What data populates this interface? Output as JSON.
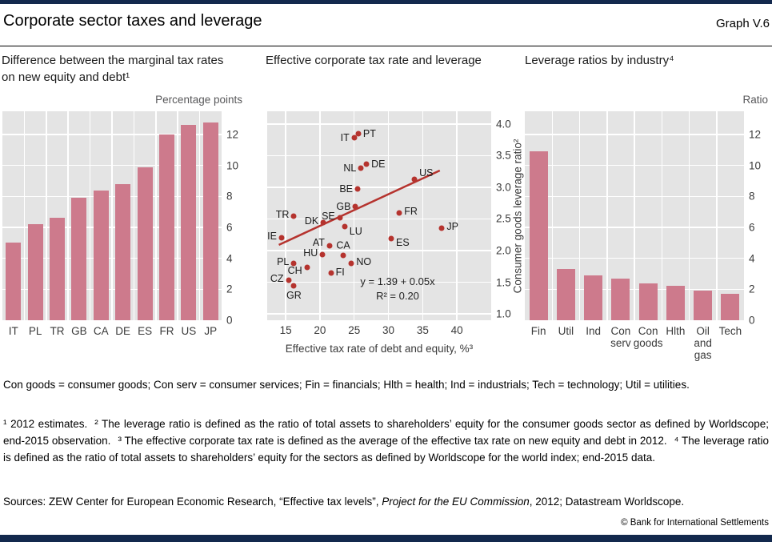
{
  "header": {
    "title": "Corporate sector taxes and leverage",
    "graph_label": "Graph V.6"
  },
  "colors": {
    "brand_bar": "#13294d",
    "plot_bg": "#e4e4e4",
    "gridline": "#ffffff",
    "bar": "#cd7a8c",
    "dot": "#b5332e",
    "trend": "#b5332e"
  },
  "chart_data": [
    {
      "type": "bar",
      "title": "Difference between the marginal tax rates on new equity and debt¹",
      "unit": "Percentage points",
      "categories": [
        "IT",
        "PL",
        "TR",
        "GB",
        "CA",
        "DE",
        "ES",
        "FR",
        "US",
        "JP"
      ],
      "values": [
        5.0,
        6.2,
        6.6,
        7.9,
        8.4,
        8.8,
        9.9,
        12.0,
        12.6,
        12.8
      ],
      "ylim": [
        0,
        13.5
      ],
      "yticks": [
        0,
        2,
        4,
        6,
        8,
        10,
        12
      ],
      "grid": true,
      "legend": "none",
      "bar_color": "#cd7a8c"
    },
    {
      "type": "scatter",
      "title": "Effective corporate tax rate and leverage",
      "xlabel": "Effective tax rate of debt and equity, %³",
      "ylabel": "Consumer goods leverage ratio²",
      "xlim": [
        12.3,
        45
      ],
      "ylim": [
        0.9,
        4.2
      ],
      "xticks": [
        15,
        20,
        25,
        30,
        35,
        40
      ],
      "yticks": [
        1.0,
        1.5,
        2.0,
        2.5,
        3.0,
        3.5,
        4.0
      ],
      "ytick_labels": [
        "1.0",
        "1.5",
        "2.0",
        "2.5",
        "3.0",
        "3.5",
        "4.0"
      ],
      "grid": true,
      "dot_color": "#b5332e",
      "line_color": "#b5332e",
      "trendline": {
        "equation": "y = 1.39 + 0.05x",
        "r2": "R² = 0.20",
        "slope": 0.05,
        "intercept": 1.39,
        "x_start": 14,
        "x_end": 37.5
      },
      "points": [
        {
          "label": "IT",
          "x": 25.0,
          "y": 3.78,
          "side": "left"
        },
        {
          "label": "PT",
          "x": 25.6,
          "y": 3.84,
          "side": "right"
        },
        {
          "label": "NL",
          "x": 26.0,
          "y": 3.3,
          "side": "left"
        },
        {
          "label": "DE",
          "x": 26.8,
          "y": 3.37,
          "side": "right"
        },
        {
          "label": "US",
          "x": 33.8,
          "y": 3.12,
          "side": "right",
          "dy": -8
        },
        {
          "label": "BE",
          "x": 25.5,
          "y": 2.97,
          "side": "left"
        },
        {
          "label": "GB",
          "x": 25.2,
          "y": 2.7,
          "side": "left"
        },
        {
          "label": "FR",
          "x": 31.6,
          "y": 2.6,
          "side": "right",
          "dy": -2
        },
        {
          "label": "TR",
          "x": 16.2,
          "y": 2.54,
          "side": "left",
          "dy": -2
        },
        {
          "label": "SE",
          "x": 22.9,
          "y": 2.52,
          "side": "left",
          "dy": -2
        },
        {
          "label": "DK",
          "x": 20.5,
          "y": 2.44,
          "side": "left",
          "dy": -2
        },
        {
          "label": "LU",
          "x": 23.6,
          "y": 2.38,
          "side": "right",
          "dy": 6
        },
        {
          "label": "JP",
          "x": 37.8,
          "y": 2.36,
          "side": "right",
          "dy": -2
        },
        {
          "label": "IE",
          "x": 14.4,
          "y": 2.2,
          "side": "left",
          "dy": -2
        },
        {
          "label": "ES",
          "x": 30.4,
          "y": 2.19,
          "side": "right",
          "dy": 5
        },
        {
          "label": "AT",
          "x": 21.4,
          "y": 2.08,
          "side": "left",
          "dy": -4
        },
        {
          "label": "CA",
          "x": 23.4,
          "y": 1.93,
          "side": "above"
        },
        {
          "label": "HU",
          "x": 20.4,
          "y": 1.94,
          "side": "left",
          "dy": -2
        },
        {
          "label": "NO",
          "x": 24.6,
          "y": 1.8,
          "side": "right",
          "dy": -2
        },
        {
          "label": "PL",
          "x": 16.2,
          "y": 1.8,
          "side": "left",
          "dy": -2
        },
        {
          "label": "CH",
          "x": 18.1,
          "y": 1.73,
          "side": "left",
          "dy": 4
        },
        {
          "label": "FI",
          "x": 21.6,
          "y": 1.64,
          "side": "right",
          "dy": -1
        },
        {
          "label": "CZ",
          "x": 15.4,
          "y": 1.53,
          "side": "left",
          "dy": -2
        },
        {
          "label": "GR",
          "x": 16.2,
          "y": 1.44,
          "side": "below"
        }
      ]
    },
    {
      "type": "bar",
      "title": "Leverage ratios by industry⁴",
      "unit": "Ratio",
      "categories": [
        "Fin",
        "Util",
        "Ind",
        "Con\nserv",
        "Con\ngoods",
        "Hlth",
        "Oil\nand\ngas",
        "Tech"
      ],
      "values": [
        10.9,
        3.3,
        2.9,
        2.7,
        2.4,
        2.2,
        1.9,
        1.7
      ],
      "ylim": [
        0,
        13.5
      ],
      "yticks": [
        0,
        2,
        4,
        6,
        8,
        10,
        12
      ],
      "grid": true,
      "legend": "none",
      "bar_color": "#cd7a8c"
    }
  ],
  "footer": {
    "abbreviations": "Con goods = consumer goods; Con serv = consumer services; Fin = financials; Hlth = health; Ind = industrials; Tech = technology; Util = utilities.",
    "footnotes": [
      "¹  2012 estimates.",
      "²  The leverage ratio is defined as the ratio of total assets to shareholders’ equity for the consumer goods sector as defined by Worldscope; end-2015 observation.",
      "³  The effective corporate tax rate is defined as the average of the effective tax rate on new equity and debt in 2012.",
      "⁴  The leverage ratio is defined as the ratio of total assets to shareholders’ equity for the sectors as defined by Worldscope for the world index; end-2015 data."
    ],
    "sources_parts": [
      {
        "text": "Sources: ZEW Center for European Economic Research, “Effective tax levels”, ",
        "italic": false
      },
      {
        "text": "Project for the EU Commission",
        "italic": true
      },
      {
        "text": ", 2012; Datastream Worldscope.",
        "italic": false
      }
    ],
    "copyright": "© Bank for International Settlements"
  }
}
